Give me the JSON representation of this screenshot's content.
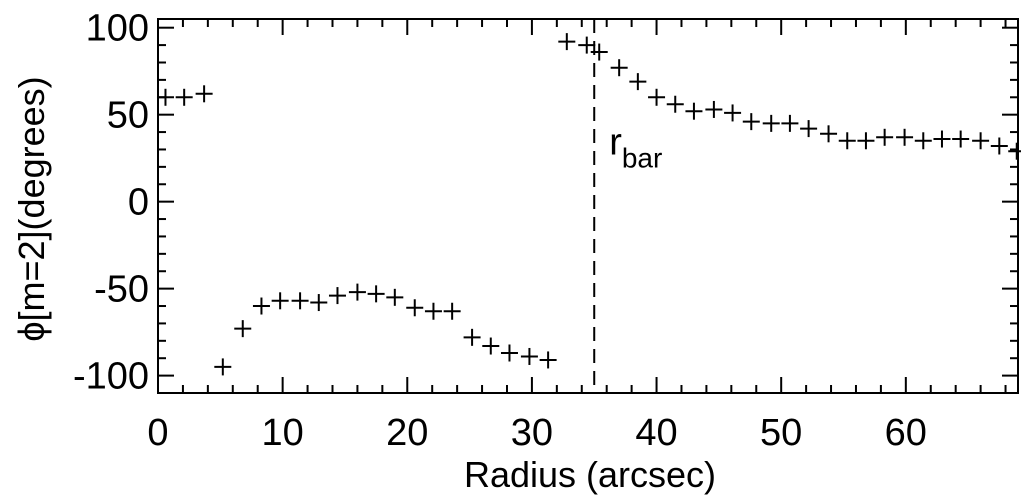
{
  "chart_data": {
    "type": "scatter",
    "xlabel": "Radius (arcsec)",
    "ylabel": "ϕ[m=2](degrees)",
    "xlim": [
      0,
      69
    ],
    "ylim": [
      -110,
      105
    ],
    "x_ticks": [
      0,
      10,
      20,
      30,
      40,
      50,
      60
    ],
    "x_tick_labels": [
      "0",
      "10",
      "20",
      "30",
      "40",
      "50",
      "60"
    ],
    "y_ticks": [
      -100,
      -50,
      0,
      50,
      100
    ],
    "y_tick_labels": [
      "-100",
      "-50",
      "0",
      "50",
      "100"
    ],
    "marker": "plus",
    "color": "#000000",
    "grid": false,
    "points": [
      {
        "x": 0.6,
        "y": 60
      },
      {
        "x": 2.1,
        "y": 60
      },
      {
        "x": 3.7,
        "y": 62
      },
      {
        "x": 5.2,
        "y": -95
      },
      {
        "x": 6.8,
        "y": -73
      },
      {
        "x": 8.3,
        "y": -60
      },
      {
        "x": 9.8,
        "y": -57
      },
      {
        "x": 11.4,
        "y": -57
      },
      {
        "x": 12.9,
        "y": -58
      },
      {
        "x": 14.4,
        "y": -54
      },
      {
        "x": 16.0,
        "y": -52
      },
      {
        "x": 17.5,
        "y": -53
      },
      {
        "x": 19.0,
        "y": -55
      },
      {
        "x": 20.6,
        "y": -61
      },
      {
        "x": 22.1,
        "y": -63
      },
      {
        "x": 23.6,
        "y": -63
      },
      {
        "x": 25.2,
        "y": -78
      },
      {
        "x": 26.7,
        "y": -83
      },
      {
        "x": 28.2,
        "y": -87
      },
      {
        "x": 29.8,
        "y": -89
      },
      {
        "x": 31.3,
        "y": -91
      },
      {
        "x": 32.8,
        "y": 92
      },
      {
        "x": 34.4,
        "y": 90
      },
      {
        "x": 35.4,
        "y": 86
      },
      {
        "x": 37.0,
        "y": 77
      },
      {
        "x": 38.5,
        "y": 69
      },
      {
        "x": 40.0,
        "y": 60
      },
      {
        "x": 41.5,
        "y": 56
      },
      {
        "x": 43.0,
        "y": 52
      },
      {
        "x": 44.6,
        "y": 53
      },
      {
        "x": 46.1,
        "y": 51
      },
      {
        "x": 47.6,
        "y": 46
      },
      {
        "x": 49.2,
        "y": 45
      },
      {
        "x": 50.7,
        "y": 45
      },
      {
        "x": 52.2,
        "y": 42
      },
      {
        "x": 53.8,
        "y": 39
      },
      {
        "x": 55.3,
        "y": 35
      },
      {
        "x": 56.8,
        "y": 35
      },
      {
        "x": 58.3,
        "y": 37
      },
      {
        "x": 59.9,
        "y": 37
      },
      {
        "x": 61.4,
        "y": 35
      },
      {
        "x": 62.9,
        "y": 36
      },
      {
        "x": 64.4,
        "y": 36
      },
      {
        "x": 66.0,
        "y": 35
      },
      {
        "x": 67.5,
        "y": 32
      },
      {
        "x": 68.9,
        "y": 29
      }
    ],
    "annotations": [
      {
        "type": "vline",
        "x": 35.0,
        "style": "dashed"
      },
      {
        "type": "text",
        "text": "r",
        "subscript": "bar",
        "x": 36.2,
        "y": 27
      }
    ]
  }
}
